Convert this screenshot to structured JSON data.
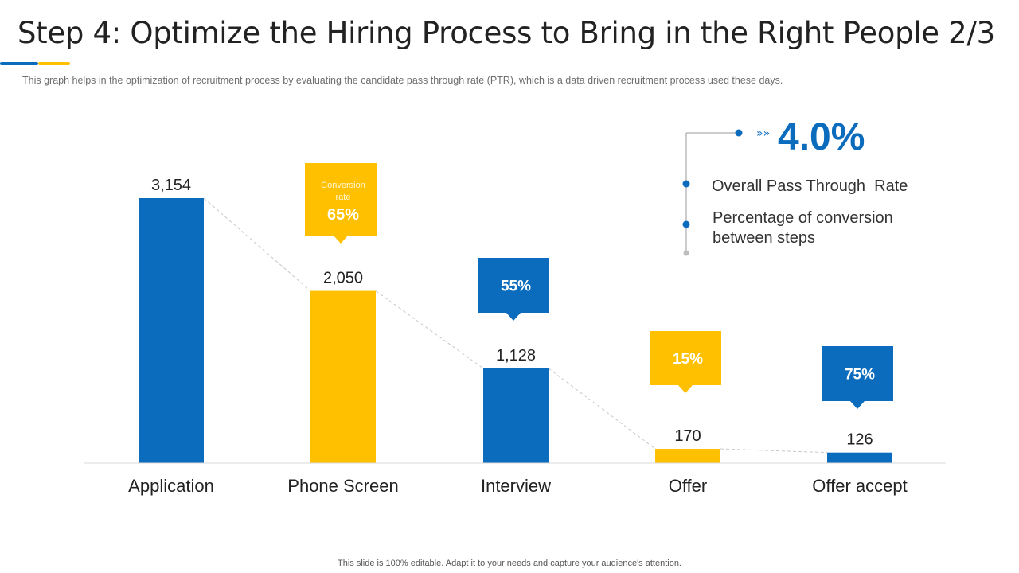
{
  "header": {
    "title": "Step 4: Optimize the Hiring Process to Bring in the Right People 2/3",
    "subtitle": "This graph helps in the optimization of recruitment process by evaluating the candidate pass through rate (PTR), which is a data driven recruitment process used these days."
  },
  "colors": {
    "blue": "#0b6bbd",
    "yellow": "#ffc000"
  },
  "chart_data": {
    "type": "bar",
    "categories": [
      "Application",
      "Phone Screen",
      "Interview",
      "Offer",
      "Offer accept"
    ],
    "values": [
      3154,
      2050,
      1128,
      170,
      126
    ],
    "value_labels": [
      "3,154",
      "2,050",
      "1,128",
      "170",
      "126"
    ],
    "bar_colors": [
      "blue",
      "yellow",
      "blue",
      "yellow",
      "blue"
    ],
    "ylim": [
      0,
      3154
    ],
    "conversion_callouts": [
      {
        "category": "Phone Screen",
        "caption": "Conversion rate",
        "value": "65%",
        "color": "yellow"
      },
      {
        "category": "Interview",
        "caption": "",
        "value": "55%",
        "color": "blue"
      },
      {
        "category": "Offer",
        "caption": "",
        "value": "15%",
        "color": "yellow"
      },
      {
        "category": "Offer accept",
        "caption": "",
        "value": "75%",
        "color": "blue"
      }
    ],
    "trend_line": "dashed connector linking bar tops",
    "legend": {
      "headline": "4.0%",
      "items": [
        "Overall Pass Through  Rate",
        "Percentage of conversion between steps"
      ]
    }
  },
  "footer": {
    "text": "This slide is 100% editable. Adapt it to your needs and capture your audience's attention."
  }
}
